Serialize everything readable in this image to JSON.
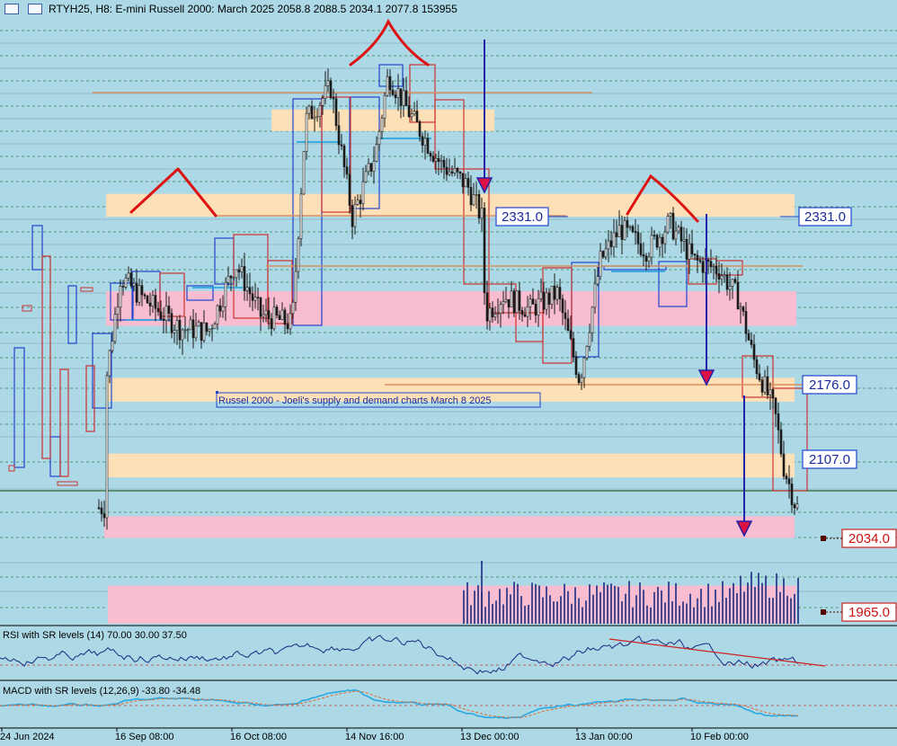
{
  "header": {
    "symbol_line": "RTYH25, H8:  E-mini Russell 2000: March 2025  2058.8 2088.5 2034.1 2077.8  153955"
  },
  "chart_data": {
    "type": "candlestick",
    "symbol": "RTYH25",
    "timeframe": "H8",
    "instrument": "E-mini Russell 2000: March 2025",
    "last_bar": {
      "open": 2058.8,
      "high": 2088.5,
      "low": 2034.1,
      "close": 2077.8,
      "volume": 153955
    },
    "annotation": "Russel 2000 - Joeli's supply and demand charts March 8 2025",
    "price_labels": [
      {
        "value": "2331.0",
        "price": 2331.0,
        "style": "blue"
      },
      {
        "value": "2331.0",
        "price": 2331.0,
        "style": "blue",
        "side": "right"
      },
      {
        "value": "2176.0",
        "price": 2176.0,
        "style": "blue"
      },
      {
        "value": "2107.0",
        "price": 2107.0,
        "style": "blue"
      },
      {
        "value": "2034.0",
        "price": 2034.0,
        "style": "red"
      },
      {
        "value": "1965.0",
        "price": 1965.0,
        "style": "red"
      }
    ],
    "x_tick_labels": [
      "24 Jun 2024",
      "16 Sep 08:00",
      "16 Oct 08:00",
      "14 Nov 16:00",
      "13 Dec 00:00",
      "13 Jan 00:00",
      "10 Feb 00:00"
    ],
    "supply_zones": [
      {
        "from": 2410,
        "to": 2430
      },
      {
        "from": 2331,
        "to": 2352
      },
      {
        "from": 2160,
        "to": 2182
      },
      {
        "from": 2090,
        "to": 2112
      }
    ],
    "demand_zones": [
      {
        "from": 2230,
        "to": 2262
      },
      {
        "from": 2034,
        "to": 2054
      },
      {
        "from": 1955,
        "to": 1990
      }
    ],
    "rsi": {
      "label": "RSI with SR levels (14) 70.00 30.00 37.50",
      "period": 14,
      "levels": [
        70,
        30,
        37.5
      ]
    },
    "macd": {
      "label": "MACD with SR levels (12,26,9) -33.80 -34.48",
      "fast": 12,
      "slow": 26,
      "signal": 9,
      "value": -33.8,
      "signal_value": -34.48
    },
    "colors": {
      "background": "#add8e6",
      "supply": "#fde0b8",
      "demand": "#f8bdd0",
      "candle": "#1a1a1a",
      "box_blue": "#2244cc",
      "box_red": "#cc3333",
      "pattern": "#dd1111",
      "arrow": "#2222aa"
    },
    "grid": true
  }
}
